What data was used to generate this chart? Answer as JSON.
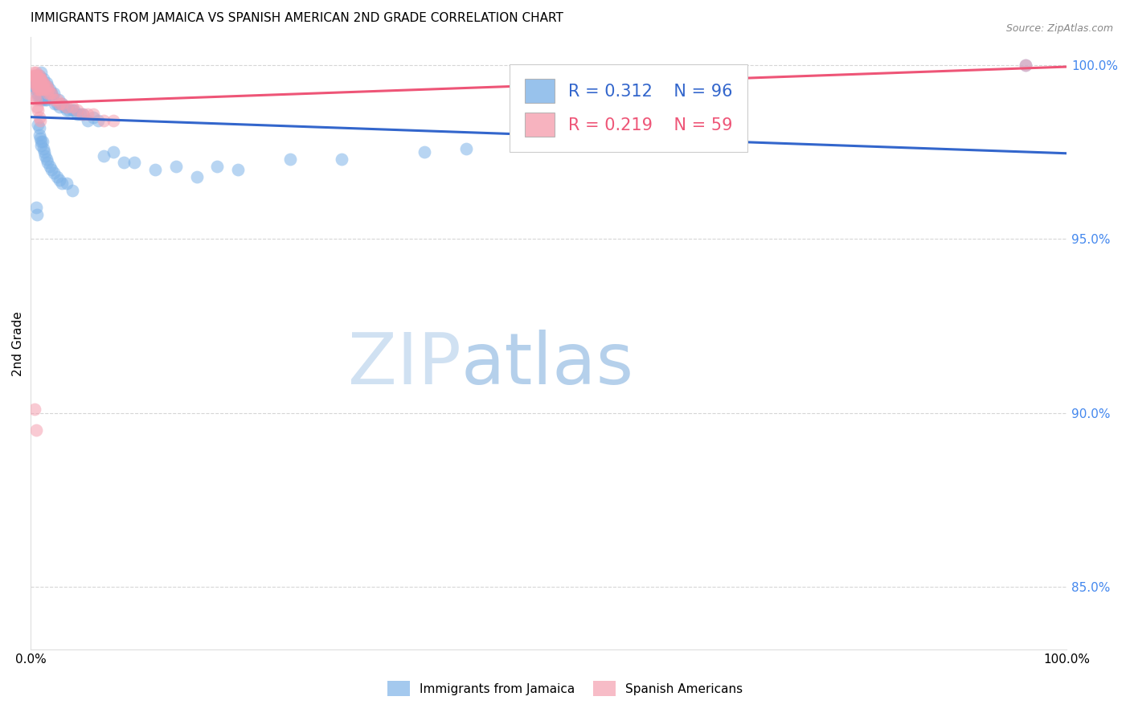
{
  "title": "IMMIGRANTS FROM JAMAICA VS SPANISH AMERICAN 2ND GRADE CORRELATION CHART",
  "source": "Source: ZipAtlas.com",
  "ylabel": "2nd Grade",
  "legend_label1": "Immigrants from Jamaica",
  "legend_label2": "Spanish Americans",
  "R1": 0.312,
  "N1": 96,
  "R2": 0.219,
  "N2": 59,
  "color_blue": "#7EB3E8",
  "color_pink": "#F5A0B0",
  "color_blue_line": "#3366CC",
  "color_pink_line": "#EE5577",
  "color_grid": "#CCCCCC",
  "color_right_axis": "#4488EE",
  "xlim": [
    0.0,
    1.0
  ],
  "ylim": [
    0.832,
    1.008
  ],
  "y_ticks": [
    0.85,
    0.9,
    0.95,
    1.0
  ],
  "y_tick_labels": [
    "85.0%",
    "90.0%",
    "95.0%",
    "100.0%"
  ],
  "scatter_blue_x": [
    0.003,
    0.004,
    0.005,
    0.005,
    0.006,
    0.006,
    0.006,
    0.007,
    0.007,
    0.007,
    0.008,
    0.008,
    0.008,
    0.008,
    0.009,
    0.009,
    0.009,
    0.009,
    0.01,
    0.01,
    0.01,
    0.01,
    0.011,
    0.011,
    0.011,
    0.012,
    0.012,
    0.012,
    0.013,
    0.013,
    0.014,
    0.014,
    0.015,
    0.015,
    0.015,
    0.016,
    0.016,
    0.017,
    0.018,
    0.018,
    0.019,
    0.02,
    0.021,
    0.022,
    0.023,
    0.025,
    0.027,
    0.028,
    0.03,
    0.032,
    0.035,
    0.037,
    0.04,
    0.042,
    0.045,
    0.048,
    0.05,
    0.055,
    0.06,
    0.065,
    0.007,
    0.008,
    0.008,
    0.009,
    0.01,
    0.01,
    0.011,
    0.012,
    0.013,
    0.014,
    0.015,
    0.016,
    0.018,
    0.02,
    0.022,
    0.025,
    0.028,
    0.03,
    0.035,
    0.04,
    0.07,
    0.08,
    0.09,
    0.1,
    0.12,
    0.14,
    0.16,
    0.18,
    0.2,
    0.25,
    0.005,
    0.006,
    0.3,
    0.38,
    0.42,
    0.96
  ],
  "scatter_blue_y": [
    0.994,
    0.995,
    0.996,
    0.993,
    0.995,
    0.994,
    0.992,
    0.996,
    0.993,
    0.991,
    0.997,
    0.995,
    0.993,
    0.991,
    0.996,
    0.994,
    0.992,
    0.99,
    0.998,
    0.996,
    0.994,
    0.991,
    0.995,
    0.993,
    0.99,
    0.996,
    0.994,
    0.991,
    0.994,
    0.992,
    0.993,
    0.99,
    0.995,
    0.993,
    0.99,
    0.994,
    0.991,
    0.992,
    0.993,
    0.991,
    0.992,
    0.992,
    0.991,
    0.992,
    0.989,
    0.989,
    0.99,
    0.988,
    0.989,
    0.988,
    0.987,
    0.987,
    0.987,
    0.987,
    0.986,
    0.986,
    0.986,
    0.984,
    0.985,
    0.984,
    0.983,
    0.982,
    0.98,
    0.979,
    0.978,
    0.977,
    0.978,
    0.976,
    0.975,
    0.974,
    0.973,
    0.972,
    0.971,
    0.97,
    0.969,
    0.968,
    0.967,
    0.966,
    0.966,
    0.964,
    0.974,
    0.975,
    0.972,
    0.972,
    0.97,
    0.971,
    0.968,
    0.971,
    0.97,
    0.973,
    0.959,
    0.957,
    0.973,
    0.975,
    0.976,
    1.0
  ],
  "scatter_pink_x": [
    0.003,
    0.003,
    0.004,
    0.004,
    0.004,
    0.005,
    0.005,
    0.005,
    0.005,
    0.006,
    0.006,
    0.006,
    0.006,
    0.007,
    0.007,
    0.007,
    0.007,
    0.008,
    0.008,
    0.008,
    0.008,
    0.009,
    0.009,
    0.009,
    0.01,
    0.01,
    0.01,
    0.011,
    0.011,
    0.012,
    0.012,
    0.013,
    0.014,
    0.015,
    0.016,
    0.017,
    0.018,
    0.02,
    0.022,
    0.025,
    0.028,
    0.03,
    0.035,
    0.04,
    0.045,
    0.05,
    0.055,
    0.06,
    0.07,
    0.08,
    0.004,
    0.005,
    0.006,
    0.007,
    0.008,
    0.009,
    0.004,
    0.005,
    0.96
  ],
  "scatter_pink_y": [
    0.998,
    0.997,
    0.997,
    0.996,
    0.995,
    0.998,
    0.997,
    0.996,
    0.994,
    0.997,
    0.996,
    0.995,
    0.994,
    0.996,
    0.995,
    0.994,
    0.993,
    0.997,
    0.996,
    0.995,
    0.993,
    0.996,
    0.995,
    0.993,
    0.996,
    0.995,
    0.993,
    0.995,
    0.994,
    0.995,
    0.993,
    0.994,
    0.993,
    0.994,
    0.992,
    0.993,
    0.992,
    0.992,
    0.99,
    0.99,
    0.989,
    0.989,
    0.988,
    0.988,
    0.987,
    0.986,
    0.986,
    0.986,
    0.984,
    0.984,
    0.991,
    0.99,
    0.988,
    0.987,
    0.985,
    0.984,
    0.901,
    0.895,
    1.0
  ]
}
